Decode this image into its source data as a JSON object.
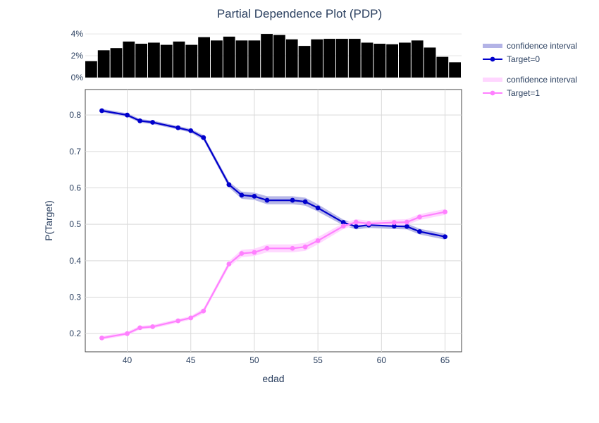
{
  "chart_data": {
    "type": "line",
    "title": "Partial Dependence Plot (PDP)",
    "xlabel": "edad",
    "ylabel": "P(Target)",
    "xlim": [
      36.7,
      66.3
    ],
    "ylim": [
      0.15,
      0.87
    ],
    "x_ticks": [
      "40",
      "45",
      "50",
      "55",
      "60",
      "65"
    ],
    "y_ticks": [
      "0.2",
      "0.3",
      "0.4",
      "0.5",
      "0.6",
      "0.7",
      "0.8"
    ],
    "grid": true,
    "legend_position": "right",
    "x": [
      38,
      40,
      41,
      42,
      44,
      45,
      46,
      48,
      49,
      50,
      51,
      53,
      54,
      55,
      57,
      58,
      59,
      61,
      62,
      63,
      65
    ],
    "series": [
      {
        "name": "Target=0",
        "color": "#0000cc",
        "band_color": "#b3b3e6",
        "values": [
          0.812,
          0.8,
          0.784,
          0.78,
          0.765,
          0.757,
          0.738,
          0.609,
          0.58,
          0.577,
          0.566,
          0.566,
          0.562,
          0.545,
          0.505,
          0.494,
          0.498,
          0.495,
          0.494,
          0.48,
          0.466
        ],
        "band_width": [
          0.005,
          0.005,
          0.005,
          0.005,
          0.005,
          0.005,
          0.007,
          0.008,
          0.01,
          0.01,
          0.011,
          0.011,
          0.011,
          0.01,
          0.008,
          0.008,
          0.008,
          0.008,
          0.008,
          0.008,
          0.008
        ]
      },
      {
        "name": "Target=1",
        "color": "#ff80ff",
        "band_color": "#ffd6ff",
        "values": [
          0.188,
          0.2,
          0.216,
          0.219,
          0.235,
          0.243,
          0.262,
          0.391,
          0.42,
          0.423,
          0.434,
          0.434,
          0.438,
          0.455,
          0.495,
          0.506,
          0.502,
          0.505,
          0.506,
          0.52,
          0.534
        ],
        "band_width": [
          0.005,
          0.005,
          0.005,
          0.005,
          0.005,
          0.005,
          0.007,
          0.008,
          0.01,
          0.01,
          0.011,
          0.011,
          0.011,
          0.01,
          0.008,
          0.008,
          0.008,
          0.008,
          0.008,
          0.008,
          0.008
        ]
      }
    ],
    "legend": [
      {
        "label": "confidence interval",
        "kind": "band",
        "color": "#b3b3e6"
      },
      {
        "label": "Target=0",
        "kind": "line",
        "color": "#0000cc"
      },
      {
        "label": "confidence interval",
        "kind": "band",
        "color": "#ffd6ff"
      },
      {
        "label": "Target=1",
        "kind": "line",
        "color": "#ff80ff"
      }
    ],
    "histogram": {
      "y_ticks": [
        "0%",
        "2%",
        "4%"
      ],
      "ylim": [
        0,
        4.2
      ],
      "bar_color": "#000000",
      "values": [
        1.5,
        2.5,
        2.7,
        3.3,
        3.1,
        3.2,
        3.0,
        3.3,
        3.0,
        3.7,
        3.4,
        3.75,
        3.4,
        3.4,
        4.0,
        3.9,
        3.5,
        2.9,
        3.5,
        3.55,
        3.55,
        3.55,
        3.2,
        3.1,
        3.05,
        3.2,
        3.4,
        2.75,
        1.9,
        1.4
      ]
    }
  }
}
